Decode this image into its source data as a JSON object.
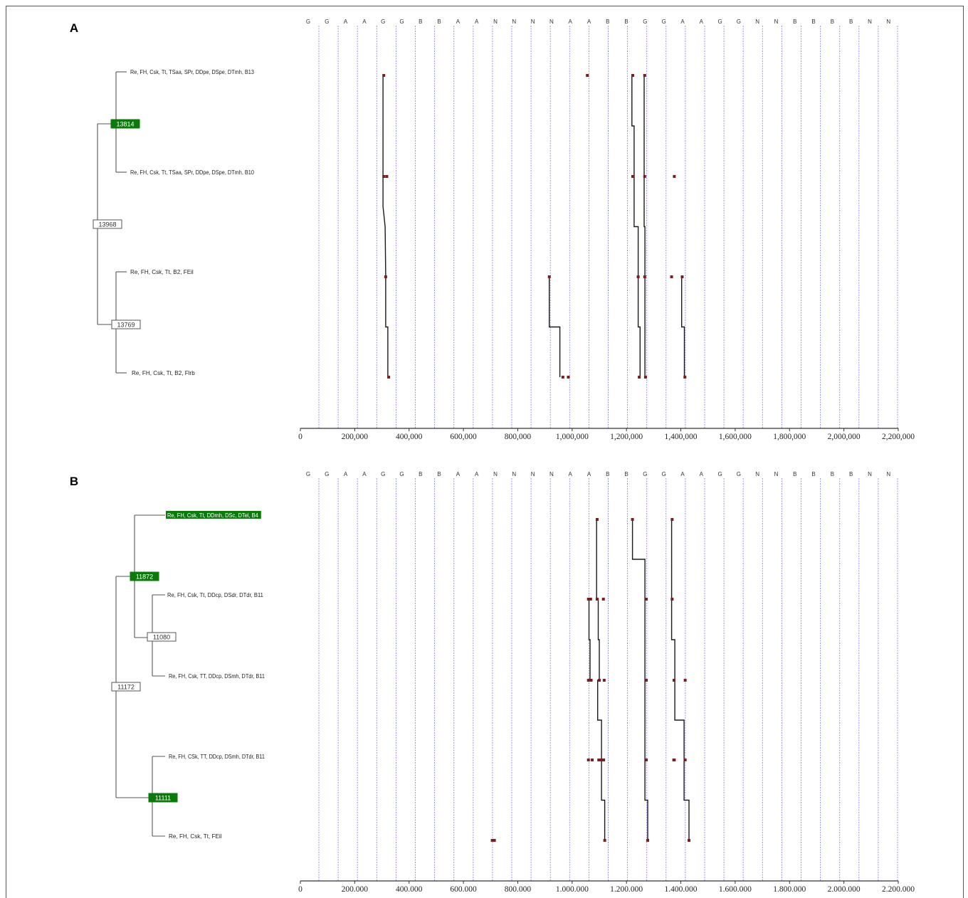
{
  "colors": {
    "grid": "#8c8cf0",
    "line": "#1a1a1a",
    "dot": "#7a1f1f",
    "node_fill": "#0a7a0a",
    "node_text": "#ffffff",
    "tree": "#555555"
  },
  "letters": [
    "G",
    "G",
    "A",
    "A",
    "G",
    "G",
    "B",
    "B",
    "A",
    "A",
    "N",
    "N",
    "N",
    "N",
    "A",
    "A",
    "B",
    "B",
    "G",
    "G",
    "A",
    "A",
    "G",
    "G",
    "N",
    "N",
    "B",
    "B",
    "B",
    "B",
    "N",
    "N"
  ],
  "panels": [
    {
      "label": "A",
      "axis": {
        "ticks": [
          0,
          200000,
          400000,
          600000,
          800000,
          1000000,
          1200000,
          1400000,
          1600000,
          1800000,
          2000000,
          2200000
        ],
        "tick_labels": [
          "0",
          "200,000",
          "400,000",
          "600,000",
          "800,000",
          "1,000,000",
          "1,200,000",
          "1,400,000",
          "1,600,000",
          "1,800,000",
          "2,000,000",
          "2,200,000"
        ]
      },
      "tree": {
        "nodes": [
          {
            "id": "n13814",
            "label": "13814",
            "highlight": true
          },
          {
            "id": "n13968",
            "label": "13968",
            "highlight": false
          },
          {
            "id": "n13769",
            "label": "13769",
            "highlight": false
          }
        ],
        "leaves": [
          {
            "label": "Re, FH, Csk, Tt, TSaa, SPr, DDpe, DSpe, DTmh, B13",
            "highlight": false
          },
          {
            "label": "Re, FH, Csk, Tt, TSaa, SPr, DDpe, DSpe, DTmh, B10",
            "highlight": false
          },
          {
            "label": "Re, FH, Csk, Tt, B2, FEil",
            "highlight": false
          },
          {
            "label": "Re, FH, Csk, Tt, B2, Flrb",
            "highlight": false
          }
        ]
      },
      "chart_data": {
        "type": "scatter",
        "x_range": [
          0,
          2200000
        ],
        "grid": true,
        "rows": [
          {
            "leaf": 0,
            "points": [
              307000,
              1056000,
              1223000,
              1267000
            ]
          },
          {
            "leaf": 1,
            "points": [
              307000,
              318000,
              1223000,
              1267000,
              1376000
            ]
          },
          {
            "leaf": 2,
            "points": [
              314000,
              916000,
              1243000,
              1267000,
              1366000,
              1405000
            ]
          },
          {
            "leaf": 3,
            "points": [
              325000,
              966000,
              986000,
              1247000,
              1270000,
              1415000
            ]
          }
        ],
        "paths": [
          [
            {
              "x": 304000,
              "row": 0
            },
            {
              "x": 304000,
              "row": 1.3
            },
            {
              "x": 312000,
              "row": 1.5
            },
            {
              "x": 314000,
              "row": 2
            },
            {
              "x": 314000,
              "row": 2.5
            },
            {
              "x": 322000,
              "row": 2.5
            },
            {
              "x": 322000,
              "row": 3
            }
          ],
          [
            {
              "x": 1220000,
              "row": 0
            },
            {
              "x": 1220000,
              "row": 0.5
            },
            {
              "x": 1228000,
              "row": 0.5
            },
            {
              "x": 1228000,
              "row": 1.5
            },
            {
              "x": 1243000,
              "row": 1.5
            },
            {
              "x": 1243000,
              "row": 2.5
            },
            {
              "x": 1250000,
              "row": 2.5
            },
            {
              "x": 1250000,
              "row": 3
            }
          ],
          [
            {
              "x": 1265000,
              "row": 0
            },
            {
              "x": 1265000,
              "row": 1.5
            },
            {
              "x": 1268000,
              "row": 1.5
            },
            {
              "x": 1268000,
              "row": 3
            }
          ],
          [
            {
              "x": 916000,
              "row": 2
            },
            {
              "x": 916000,
              "row": 2.5
            },
            {
              "x": 955000,
              "row": 2.5
            },
            {
              "x": 955000,
              "row": 3
            }
          ],
          [
            {
              "x": 1403000,
              "row": 2
            },
            {
              "x": 1403000,
              "row": 2.5
            },
            {
              "x": 1413000,
              "row": 2.5
            },
            {
              "x": 1413000,
              "row": 3
            }
          ]
        ]
      }
    },
    {
      "label": "B",
      "axis": {
        "ticks": [
          0,
          200000,
          400000,
          600000,
          800000,
          1000000,
          1200000,
          1400000,
          1600000,
          1800000,
          2000000,
          2200000
        ],
        "tick_labels": [
          "0",
          "200.000",
          "400.000",
          "600.000",
          "800.000",
          "1.000.000",
          "1.200.000",
          "1.400.000",
          "1.600.000",
          "1.800.000",
          "2.000.000",
          "2.200.000"
        ]
      },
      "tree": {
        "nodes": [
          {
            "id": "n11872",
            "label": "11872",
            "highlight": true
          },
          {
            "id": "n11080",
            "label": "11080",
            "highlight": false
          },
          {
            "id": "n11172",
            "label": "11172",
            "highlight": false
          },
          {
            "id": "n11111",
            "label": "11111",
            "highlight": true
          }
        ],
        "leaves": [
          {
            "label": "Re, FH, Csk, Tt, DDmh, DSc, DTel, B4",
            "highlight": true
          },
          {
            "label": "Re, FH, Csk, Tt, DDcp, DSdr, DTdr, B11",
            "highlight": false
          },
          {
            "label": "Re, FH, Csk, TT, DDcp, DSmh, DTdr, B11",
            "highlight": false
          },
          {
            "label": "Re, FH, CSk, TT, DDcp, DSmh, DTdr, B11",
            "highlight": false
          },
          {
            "label": "Re, FH, Csk, Tt, FEil",
            "highlight": false
          }
        ]
      },
      "chart_data": {
        "type": "scatter",
        "x_range": [
          0,
          2200000
        ],
        "grid": true,
        "rows": [
          {
            "leaf": 0,
            "points": [
              1092000,
              1222000,
              1368000
            ]
          },
          {
            "leaf": 1,
            "points": [
              1060000,
              1068000,
              1092000,
              1115000,
              1273000,
              1368000
            ]
          },
          {
            "leaf": 2,
            "points": [
              1060000,
              1070000,
              1100000,
              1118000,
              1273000,
              1375000,
              1416000
            ]
          },
          {
            "leaf": 3,
            "points": [
              1060000,
              1074000,
              1098000,
              1108000,
              1116000,
              1273000,
              1374000,
              1376000,
              1416000
            ]
          },
          {
            "leaf": 4,
            "points": [
              706000,
              714000,
              1120000,
              1278000,
              1430000
            ]
          }
        ],
        "paths": [
          [
            {
              "x": 1090000,
              "row": 0
            },
            {
              "x": 1090000,
              "row": 1
            },
            {
              "x": 1096000,
              "row": 1
            },
            {
              "x": 1096000,
              "row": 1.5
            },
            {
              "x": 1100000,
              "row": 1.5
            },
            {
              "x": 1100000,
              "row": 2
            },
            {
              "x": 1094000,
              "row": 2
            },
            {
              "x": 1094000,
              "row": 2.5
            },
            {
              "x": 1108000,
              "row": 2.5
            },
            {
              "x": 1108000,
              "row": 3.5
            },
            {
              "x": 1120000,
              "row": 3.5
            },
            {
              "x": 1120000,
              "row": 4
            }
          ],
          [
            {
              "x": 1062000,
              "row": 1
            },
            {
              "x": 1062000,
              "row": 1.5
            },
            {
              "x": 1066000,
              "row": 1.5
            },
            {
              "x": 1066000,
              "row": 2
            }
          ],
          [
            {
              "x": 1222000,
              "row": 0
            },
            {
              "x": 1222000,
              "row": 0.5
            },
            {
              "x": 1268000,
              "row": 0.5
            },
            {
              "x": 1268000,
              "row": 3.5
            },
            {
              "x": 1278000,
              "row": 3.5
            },
            {
              "x": 1278000,
              "row": 4
            }
          ],
          [
            {
              "x": 1366000,
              "row": 0
            },
            {
              "x": 1366000,
              "row": 1.5
            },
            {
              "x": 1378000,
              "row": 1.5
            },
            {
              "x": 1378000,
              "row": 2.5
            },
            {
              "x": 1412000,
              "row": 2.5
            },
            {
              "x": 1412000,
              "row": 3.5
            },
            {
              "x": 1430000,
              "row": 3.5
            },
            {
              "x": 1430000,
              "row": 4
            }
          ]
        ]
      }
    }
  ]
}
